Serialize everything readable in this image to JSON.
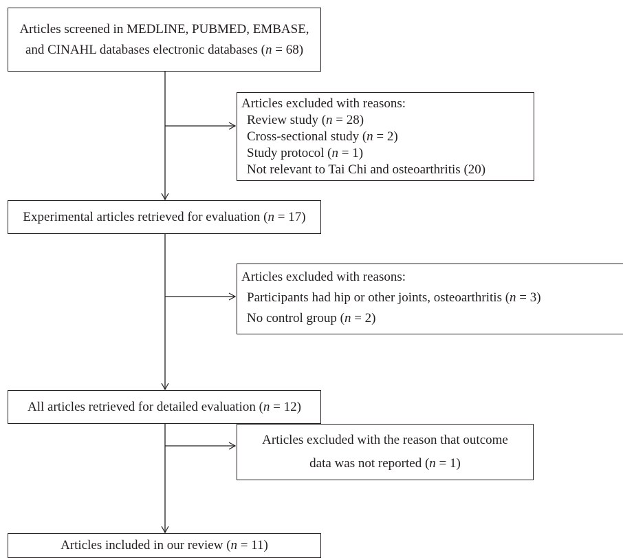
{
  "boxes": {
    "screened": {
      "line1": "Articles screened in MEDLINE, PUBMED, EMBASE,",
      "line2_pre": "and CINAHL databases electronic databases (",
      "n": "n",
      "eq": " = 68)"
    },
    "exclusion1": {
      "title": "Articles excluded with reasons:",
      "items": [
        {
          "pre": "Review study (",
          "n": "n",
          "post": " = 28)"
        },
        {
          "pre": "Cross-sectional study (",
          "n": "n",
          "post": " = 2)"
        },
        {
          "pre": "Study protocol (",
          "n": "n",
          "post": " = 1)"
        },
        {
          "pre": "Not relevant to Tai Chi and osteoarthritis (20)",
          "n": "",
          "post": ""
        }
      ]
    },
    "experimental": {
      "pre": "Experimental articles retrieved for evaluation (",
      "n": "n",
      "post": " = 17)"
    },
    "exclusion2": {
      "title": "Articles excluded with reasons:",
      "items": [
        {
          "pre": "Participants had hip or other joints, osteoarthritis (",
          "n": "n",
          "post": " = 3)"
        },
        {
          "pre": "No control group (",
          "n": "n",
          "post": " = 2)"
        }
      ]
    },
    "detailed": {
      "pre": "All articles retrieved for detailed evaluation (",
      "n": "n",
      "post": " = 12)"
    },
    "exclusion3": {
      "line1": "Articles excluded with the reason that outcome",
      "line2_pre": "data was not reported  (",
      "n": "n",
      "post": " = 1)"
    },
    "included": {
      "pre": "Articles included in our review (",
      "n": "n",
      "post": " = 11)"
    }
  }
}
